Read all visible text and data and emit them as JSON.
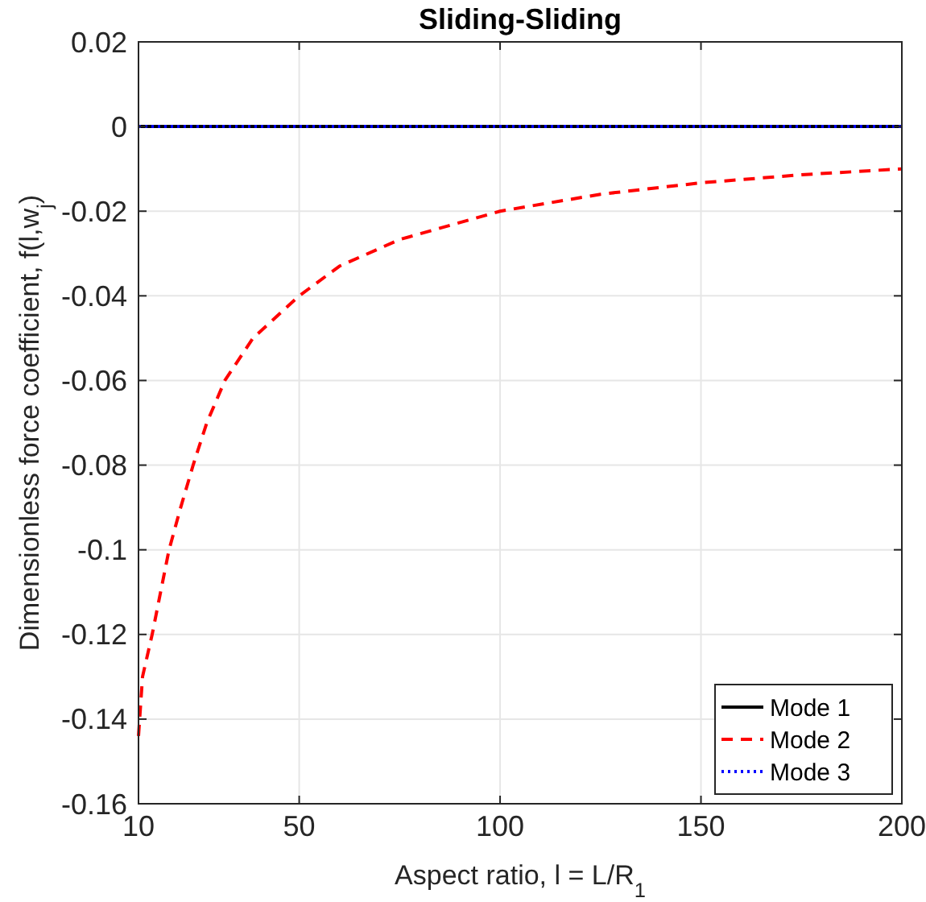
{
  "chart_data": {
    "type": "line",
    "title": "Sliding-Sliding",
    "xlabel": "Aspect ratio, l = L/R$_{1}$",
    "ylabel": "Dimensionless force coefficient, f(l,w$_{j}$)",
    "xlim": [
      10,
      200
    ],
    "xticks": [
      10,
      50,
      100,
      150,
      200
    ],
    "ylim": [
      -0.16,
      0.02
    ],
    "yticks": [
      -0.16,
      -0.14,
      -0.12,
      -0.1,
      -0.08,
      -0.06,
      -0.04,
      -0.02,
      0,
      0.02
    ],
    "grid": true,
    "legend": "bottom right",
    "series": [
      {
        "name": "Mode 1",
        "color": "#000000",
        "line_style": "solid",
        "x": [
          10,
          200
        ],
        "values": [
          0,
          0
        ]
      },
      {
        "name": "Mode 2",
        "color": "#ff0000",
        "line_style": "dashed",
        "x": [
          10,
          11,
          13.4,
          15.5,
          17.6,
          20.5,
          23.6,
          27,
          31.5,
          38.5,
          50,
          60,
          75,
          100,
          125,
          150,
          175,
          200
        ],
        "values": [
          -0.144,
          -0.13,
          -0.12,
          -0.11,
          -0.1,
          -0.09,
          -0.08,
          -0.07,
          -0.06,
          -0.05,
          -0.04,
          -0.033,
          -0.0267,
          -0.02,
          -0.016,
          -0.0133,
          -0.0114,
          -0.01
        ]
      },
      {
        "name": "Mode 3",
        "color": "#0000ff",
        "line_style": "dotted",
        "x": [
          10,
          200
        ],
        "values": [
          0,
          0
        ]
      }
    ]
  }
}
